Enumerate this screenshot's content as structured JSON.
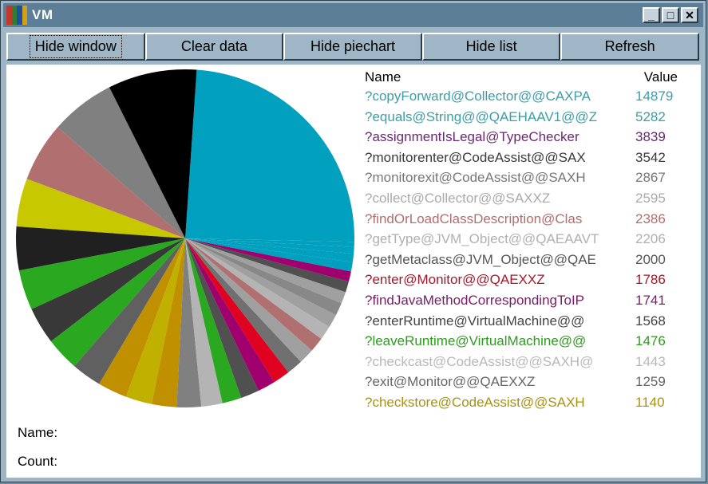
{
  "window": {
    "title": "VM"
  },
  "toolbar": {
    "buttons": [
      "Hide window",
      "Clear data",
      "Hide piechart",
      "Hide list",
      "Refresh"
    ]
  },
  "list": {
    "header_name": "Name",
    "header_value": "Value",
    "rows": [
      {
        "name": "?copyForward@Collector@@CAXPA",
        "value": "14879",
        "color": "#3b9ea8"
      },
      {
        "name": "?equals@String@@QAEHAAV1@@Z",
        "value": "5282",
        "color": "#3b9ea8"
      },
      {
        "name": "?assignmentIsLegal@TypeChecker",
        "value": "3839",
        "color": "#6a2a72"
      },
      {
        "name": "?monitorenter@CodeAssist@@SAX",
        "value": "3542",
        "color": "#3a3a3a"
      },
      {
        "name": "?monitorexit@CodeAssist@@SAXH",
        "value": "2867",
        "color": "#777777"
      },
      {
        "name": "?collect@Collector@@SAXXZ",
        "value": "2595",
        "color": "#aaaaaa"
      },
      {
        "name": "?findOrLoadClassDescription@Clas",
        "value": "2386",
        "color": "#b26d6d"
      },
      {
        "name": "?getType@JVM_Object@@QAEAAVT",
        "value": "2206",
        "color": "#b0b0b0"
      },
      {
        "name": "?getMetaclass@JVM_Object@@QAE",
        "value": "2000",
        "color": "#555555"
      },
      {
        "name": "?enter@Monitor@@QAEXXZ",
        "value": "1786",
        "color": "#a8172a"
      },
      {
        "name": "?findJavaMethodCorrespondingToIP",
        "value": "1741",
        "color": "#7a1a6a"
      },
      {
        "name": "?enterRuntime@VirtualMachine@@",
        "value": "1568",
        "color": "#444444"
      },
      {
        "name": "?leaveRuntime@VirtualMachine@@",
        "value": "1476",
        "color": "#2f9a1f"
      },
      {
        "name": "?checkcast@CodeAssist@@SAXH@",
        "value": "1443",
        "color": "#b8b8b8"
      },
      {
        "name": "?exit@Monitor@@QAEXXZ",
        "value": "1259",
        "color": "#666666"
      },
      {
        "name": "?checkstore@CodeAssist@@SAXH",
        "value": "1140",
        "color": "#a8920f"
      }
    ]
  },
  "info": {
    "name_label": "Name:",
    "count_label": "Count:"
  },
  "chart_data": {
    "type": "pie",
    "values": [
      14879,
      5282,
      3839,
      3542,
      2867,
      2595,
      2386,
      2206,
      2000,
      1786,
      1741,
      1568,
      1476,
      1443,
      1259,
      1140,
      1100,
      1050,
      1000,
      960,
      920,
      880,
      840,
      800,
      760,
      700,
      650,
      600,
      550,
      500,
      400,
      300,
      200
    ],
    "colors": [
      "#00a0be",
      "#000000",
      "#808080",
      "#b07070",
      "#c8c800",
      "#202020",
      "#2aa820",
      "#383838",
      "#2aa820",
      "#606060",
      "#c09000",
      "#c0b000",
      "#c09000",
      "#808080",
      "#b4b4b4",
      "#2aa820",
      "#505050",
      "#a0006e",
      "#e00020",
      "#707070",
      "#a0a0a0",
      "#b07070",
      "#b4b4b4",
      "#a0a0a0",
      "#888888",
      "#a0a0a0",
      "#505050",
      "#a0006e",
      "#00a0be",
      "#00a0be",
      "#00a0be",
      "#00a0be",
      "#00a0be"
    ]
  }
}
